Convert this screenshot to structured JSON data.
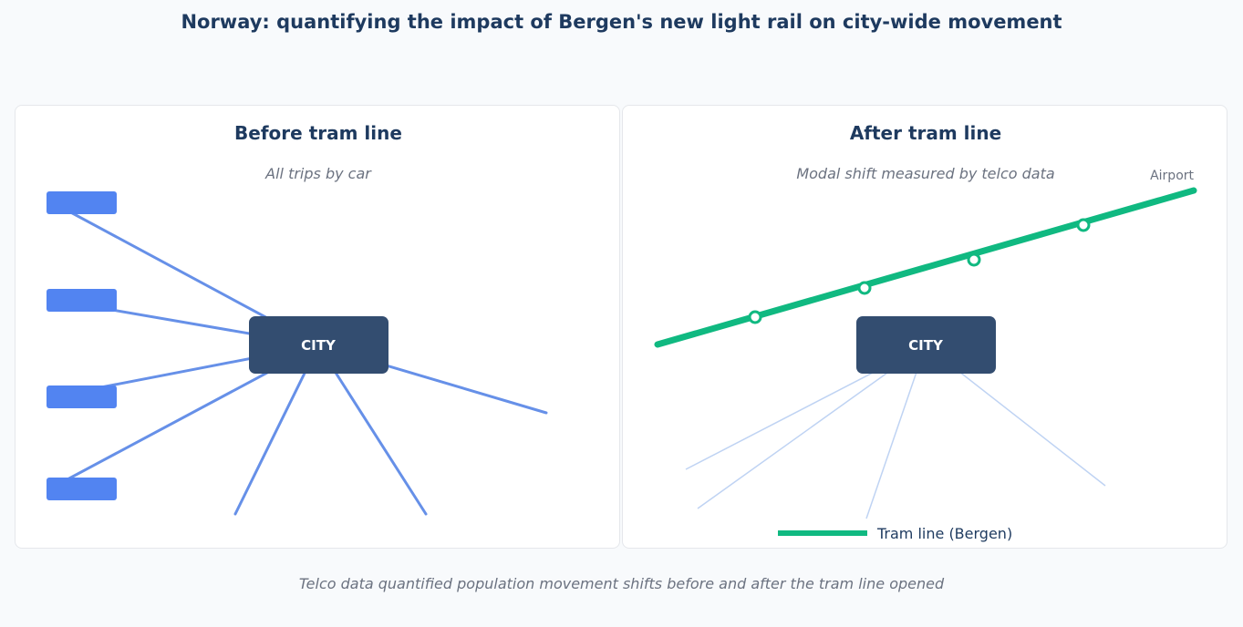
{
  "page": {
    "title": "Norway: quantifying the impact of Bergen's new light rail on city-wide movement",
    "footer": "Telco data quantified population movement shifts before and after the tram line opened"
  },
  "before": {
    "heading": "Before tram line",
    "subtitle": "All trips by car",
    "center_label": "CITY"
  },
  "after": {
    "heading": "After tram line",
    "subtitle": "Modal shift measured by telco data",
    "center_label": "CITY",
    "endpoint_label": "Airport",
    "legend_label": "Tram line (Bergen)"
  },
  "colors": {
    "title": "#1e3a5f",
    "car_lines": "#6690e8",
    "car_icons": "#5284f1",
    "city_box": "#334d70",
    "tram": "#10b981",
    "faded_lines": "#bfd3f3",
    "muted_text": "#6b7280"
  }
}
